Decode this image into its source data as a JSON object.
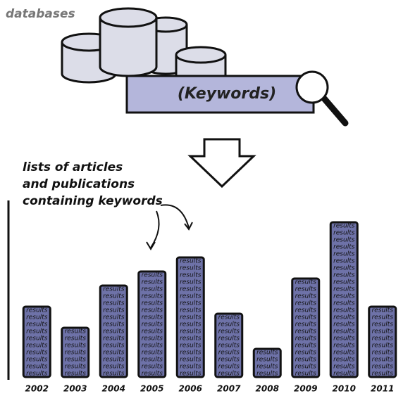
{
  "chart_data": {
    "type": "bar",
    "label_databases": "databases",
    "label_keywords": "(Keywords)",
    "note_lines": [
      "lists of articles",
      "and publications",
      "containing keywords"
    ],
    "bar_label": "results",
    "categories": [
      "2002",
      "2003",
      "2004",
      "2005",
      "2006",
      "2007",
      "2008",
      "2009",
      "2010",
      "2011"
    ],
    "values": [
      10,
      7,
      13,
      15,
      17,
      9,
      4,
      14,
      22,
      10
    ],
    "color": "#6e72a8",
    "ylim": [
      0,
      24
    ]
  }
}
